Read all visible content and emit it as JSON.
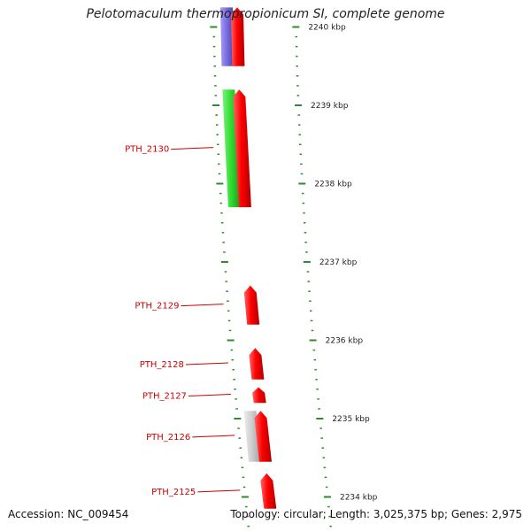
{
  "title": "Pelotomaculum thermopropionicum SI, complete genome",
  "accession": "Accession: NC_009454",
  "summary": "Topology: circular; Length: 3,025,375 bp; Genes: 2,975",
  "colors": {
    "background": "#ffffff",
    "backbone": "#8a8a8a",
    "tick": "#2e8b2e",
    "forward_gene": "#ff1a1a",
    "reverse_gene_green": "#33dd33",
    "reverse_gene_blue": "#7b6fe0",
    "reverse_gene_gray": "#c8c8c8",
    "label": "#cc0000",
    "text": "#111111"
  },
  "scale_ticks": [
    {
      "label": "2240 kbp",
      "kbp": 2240
    },
    {
      "label": "2239 kbp",
      "kbp": 2239
    },
    {
      "label": "2238 kbp",
      "kbp": 2238
    },
    {
      "label": "2237 kbp",
      "kbp": 2237
    },
    {
      "label": "2236 kbp",
      "kbp": 2236
    },
    {
      "label": "2235 kbp",
      "kbp": 2235
    },
    {
      "label": "2234 kbp",
      "kbp": 2234
    }
  ],
  "gene_labels": [
    "PTH_2130",
    "PTH_2129",
    "PTH_2128",
    "PTH_2127",
    "PTH_2126",
    "PTH_2125"
  ],
  "genes": [
    {
      "strand": "reverse",
      "color_key": "reverse_gene_blue",
      "start_kbp": 2240.25,
      "end_kbp": 2239.5,
      "label": ""
    },
    {
      "strand": "forward",
      "color_key": "forward_gene",
      "start_kbp": 2240.25,
      "end_kbp": 2239.5,
      "label": ""
    },
    {
      "strand": "reverse",
      "color_key": "reverse_gene_green",
      "start_kbp": 2239.2,
      "end_kbp": 2237.7,
      "label": "PTH_2130"
    },
    {
      "strand": "forward",
      "color_key": "forward_gene",
      "start_kbp": 2239.2,
      "end_kbp": 2237.7,
      "label": "PTH_2130"
    },
    {
      "strand": "forward",
      "color_key": "forward_gene",
      "start_kbp": 2236.7,
      "end_kbp": 2236.2,
      "label": "PTH_2129"
    },
    {
      "strand": "forward",
      "color_key": "forward_gene",
      "start_kbp": 2235.9,
      "end_kbp": 2235.5,
      "label": "PTH_2128"
    },
    {
      "strand": "forward",
      "color_key": "forward_gene",
      "start_kbp": 2235.4,
      "end_kbp": 2235.2,
      "label": "PTH_2127"
    },
    {
      "strand": "reverse",
      "color_key": "reverse_gene_gray",
      "start_kbp": 2235.1,
      "end_kbp": 2234.45,
      "label": "PTH_2126"
    },
    {
      "strand": "forward",
      "color_key": "forward_gene",
      "start_kbp": 2235.1,
      "end_kbp": 2234.45,
      "label": "PTH_2126"
    },
    {
      "strand": "forward",
      "color_key": "forward_gene",
      "start_kbp": 2234.3,
      "end_kbp": 2233.85,
      "label": "PTH_2125"
    }
  ]
}
